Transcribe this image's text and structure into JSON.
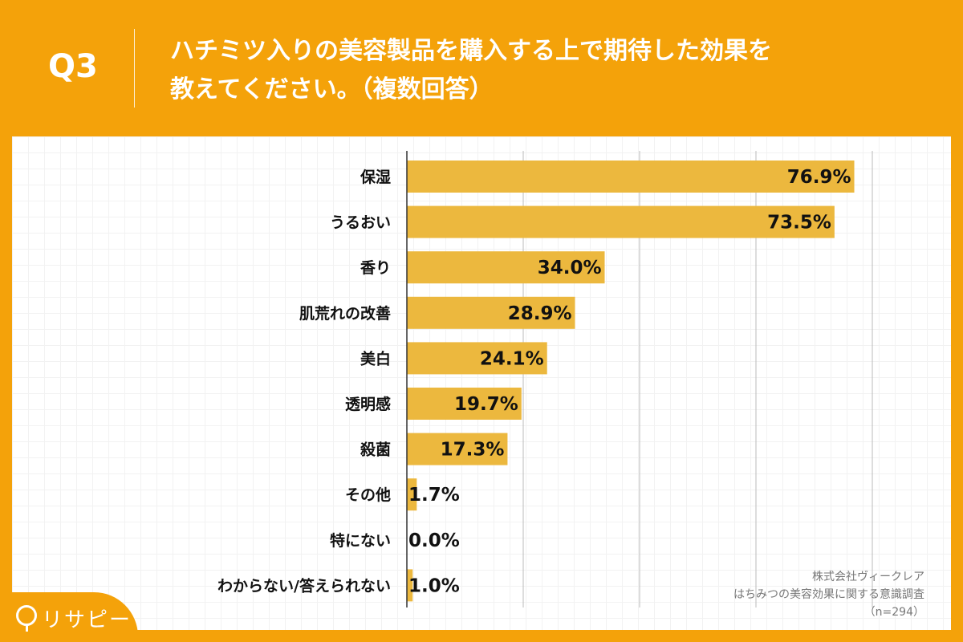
{
  "header": {
    "question": "Q3",
    "title_line1": "ハチミツ入りの美容製品を購入する上で期待した効果を",
    "title_line2": "教えてください。（複数回答）"
  },
  "colors": {
    "background": "#F4A20A",
    "bar": "#ECB83E"
  },
  "chart_data": {
    "type": "bar",
    "orientation": "horizontal",
    "categories": [
      "保湿",
      "うるおい",
      "香り",
      "肌荒れの改善",
      "美白",
      "透明感",
      "殺菌",
      "その他",
      "特にない",
      "わからない/答えられない"
    ],
    "values": [
      76.9,
      73.5,
      34.0,
      28.9,
      24.1,
      19.7,
      17.3,
      1.7,
      0.0,
      1.0
    ],
    "value_labels": [
      "76.9%",
      "73.5%",
      "34.0%",
      "28.9%",
      "24.1%",
      "19.7%",
      "17.3%",
      "1.7%",
      "0.0%",
      "1.0%"
    ],
    "xlim": [
      0,
      80
    ],
    "grid": true
  },
  "source": {
    "company": "株式会社ヴィークレア",
    "survey": "はちみつの美容効果に関する意識調査",
    "n": "（n=294）"
  },
  "logo": {
    "text": "リサピー"
  }
}
